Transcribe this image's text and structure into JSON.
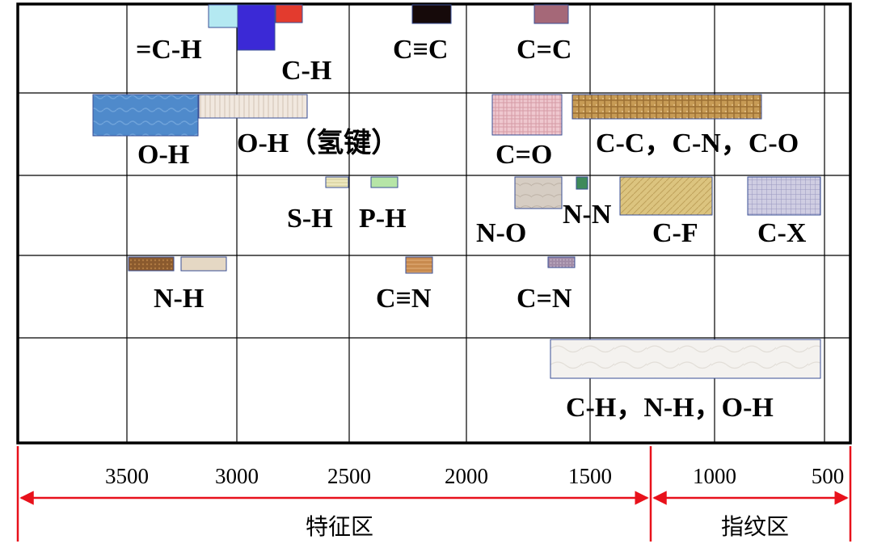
{
  "diagram": {
    "labels": {
      "eq_c_h": "=C-H",
      "c_h": "C-H",
      "c_triple_c": "C≡C",
      "c_double_c": "C=C",
      "o_h": "O-H",
      "o_h_hbond": "O-H（氢键）",
      "c_double_o": "C=O",
      "c_c_n_o": "C-C，C-N，C-O",
      "s_h": "S-H",
      "p_h": "P-H",
      "n_o": "N-O",
      "n_n": "N-N",
      "c_f": "C-F",
      "c_x": "C-X",
      "n_h": "N-H",
      "c_triple_n": "C≡N",
      "c_double_n": "C=N",
      "bend_group": "C-H，N-H，O-H"
    },
    "ticks": [
      "3500",
      "3000",
      "2500",
      "2000",
      "1500",
      "1000",
      "500"
    ],
    "regions": {
      "characteristic": "特征区",
      "fingerprint": "指纹区"
    },
    "colors": {
      "axis_red": "#e8111b",
      "cyan": "#b4e9f2",
      "blue": "#3b29d6",
      "red": "#e33b2e",
      "black": "#160a0a",
      "mauve": "#a56878",
      "oh_blue": "#4e88c8",
      "cream": "#efe4db",
      "pink": "#e7b9c3",
      "tan_wicker": "#c9a05a",
      "beige": "#d9cfc4",
      "green": "#3f8a5a",
      "gold": "#d8c07a",
      "lavender": "#c6c4dc",
      "brown": "#8a5a2e",
      "light_tan": "#e5d8c4",
      "orange_brown": "#c88a4e",
      "purple_grey": "#a28ea2",
      "light_green": "#b6e5a7",
      "pale_yellow": "#ece9c8",
      "white_marble": "#f3f1ee"
    }
  }
}
